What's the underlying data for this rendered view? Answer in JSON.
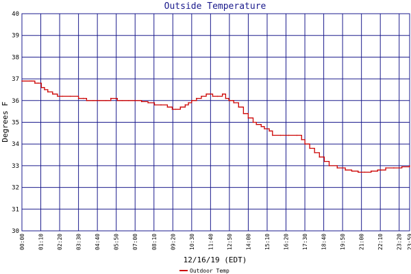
{
  "chart_data": {
    "type": "line",
    "title": "Outside Temperature",
    "xlabel": "12/16/19 (EDT)",
    "ylabel": "Degrees F",
    "ylim": [
      30,
      40
    ],
    "yticks": [
      "30",
      "31",
      "32",
      "33",
      "34",
      "35",
      "36",
      "37",
      "38",
      "39",
      "40"
    ],
    "xlim": [
      0,
      23.98
    ],
    "xticks": [
      {
        "label": "00:00",
        "value": 0
      },
      {
        "label": "01:10",
        "value": 1.1667
      },
      {
        "label": "02:20",
        "value": 2.3333
      },
      {
        "label": "03:30",
        "value": 3.5
      },
      {
        "label": "04:40",
        "value": 4.6667
      },
      {
        "label": "05:50",
        "value": 5.8333
      },
      {
        "label": "07:00",
        "value": 7
      },
      {
        "label": "08:10",
        "value": 8.1667
      },
      {
        "label": "09:20",
        "value": 9.3333
      },
      {
        "label": "10:30",
        "value": 10.5
      },
      {
        "label": "11:40",
        "value": 11.6667
      },
      {
        "label": "12:50",
        "value": 12.8333
      },
      {
        "label": "14:00",
        "value": 14
      },
      {
        "label": "15:10",
        "value": 15.1667
      },
      {
        "label": "16:20",
        "value": 16.3333
      },
      {
        "label": "17:30",
        "value": 17.5
      },
      {
        "label": "18:40",
        "value": 18.6667
      },
      {
        "label": "19:50",
        "value": 19.8333
      },
      {
        "label": "21:00",
        "value": 21
      },
      {
        "label": "22:10",
        "value": 22.1667
      },
      {
        "label": "23:20",
        "value": 23.3333
      },
      {
        "label": "23:59",
        "value": 23.98
      }
    ],
    "grid": true,
    "colors": {
      "series": "#cc0000",
      "grid": "#1a1a8c",
      "title": "#1a1a8c"
    },
    "series": [
      {
        "name": "Outdoor Temp",
        "x": [
          0,
          0.5,
          0.6,
          0.8,
          1.0,
          1.2,
          1.4,
          1.6,
          1.9,
          2.2,
          2.5,
          3.0,
          3.5,
          3.8,
          4.0,
          4.4,
          4.8,
          5.2,
          5.5,
          5.9,
          6.2,
          6.6,
          7.0,
          7.4,
          7.8,
          8.2,
          8.6,
          9.0,
          9.3,
          9.5,
          9.8,
          10.1,
          10.3,
          10.5,
          10.8,
          11.1,
          11.4,
          11.8,
          12.1,
          12.4,
          12.6,
          12.8,
          13.1,
          13.4,
          13.7,
          14.0,
          14.3,
          14.5,
          14.8,
          15.0,
          15.3,
          15.5,
          16.0,
          16.5,
          17.0,
          17.3,
          17.5,
          17.8,
          18.1,
          18.4,
          18.7,
          19.0,
          19.5,
          20.0,
          20.4,
          20.8,
          21.2,
          21.6,
          22.0,
          22.2,
          22.5,
          23.0,
          23.5,
          23.98
        ],
        "values": [
          36.9,
          36.9,
          36.9,
          36.8,
          36.8,
          36.6,
          36.5,
          36.4,
          36.3,
          36.2,
          36.2,
          36.2,
          36.1,
          36.1,
          36.0,
          36.0,
          36.0,
          36.0,
          36.1,
          36.0,
          36.0,
          36.0,
          36.0,
          35.95,
          35.9,
          35.8,
          35.8,
          35.7,
          35.6,
          35.6,
          35.7,
          35.8,
          35.9,
          36.0,
          36.1,
          36.2,
          36.3,
          36.2,
          36.2,
          36.3,
          36.1,
          36.0,
          35.9,
          35.7,
          35.4,
          35.2,
          35.0,
          34.9,
          34.8,
          34.7,
          34.6,
          34.4,
          34.4,
          34.4,
          34.4,
          34.2,
          34.0,
          33.8,
          33.6,
          33.4,
          33.2,
          33.0,
          32.9,
          32.8,
          32.75,
          32.7,
          32.7,
          32.75,
          32.8,
          32.8,
          32.9,
          32.9,
          32.95,
          33.0
        ]
      }
    ]
  }
}
